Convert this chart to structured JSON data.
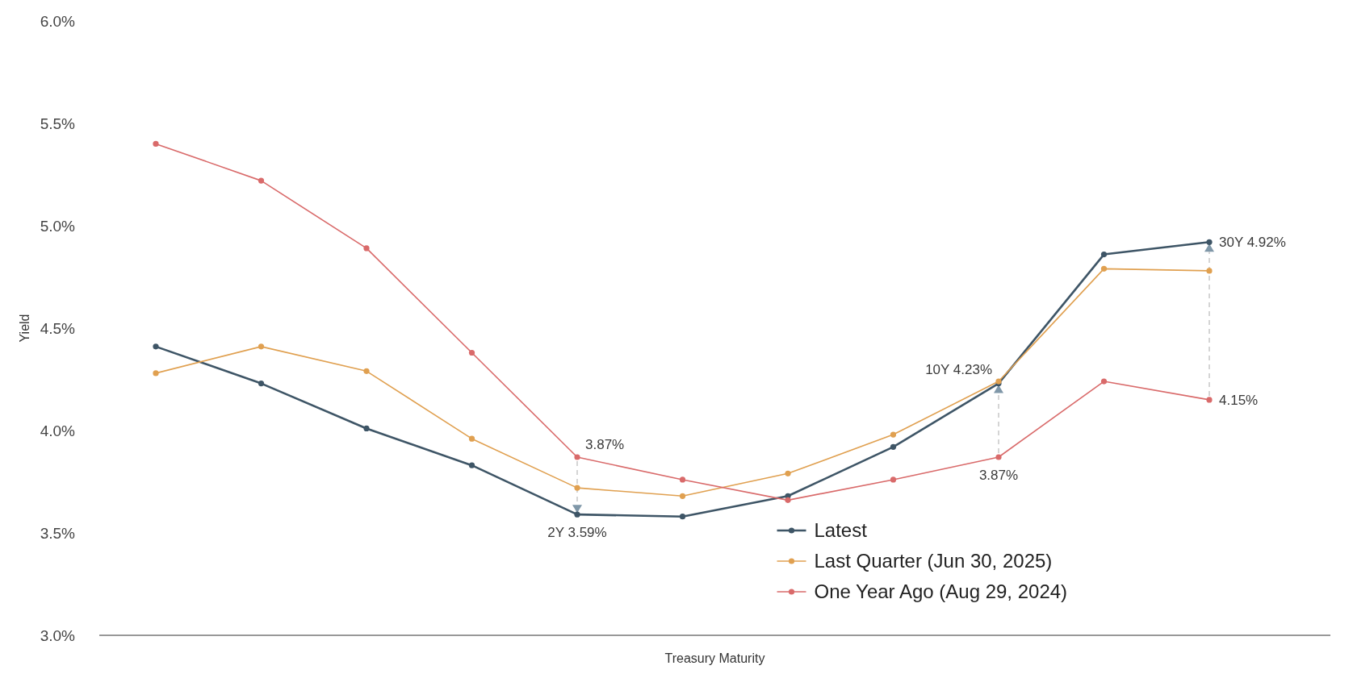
{
  "chart_data": {
    "type": "line",
    "xlabel": "Treasury Maturity",
    "ylabel": "Yield",
    "categories": [
      null,
      null,
      null,
      null,
      null,
      null,
      null,
      null,
      null,
      null,
      null
    ],
    "ylim": [
      3.0,
      6.0
    ],
    "yticks": [
      {
        "value": 3.0,
        "label": "3.0%"
      },
      {
        "value": 3.5,
        "label": "3.5%"
      },
      {
        "value": 4.0,
        "label": "4.0%"
      },
      {
        "value": 4.5,
        "label": "4.5%"
      },
      {
        "value": 5.0,
        "label": "5.0%"
      },
      {
        "value": 5.5,
        "label": "5.5%"
      },
      {
        "value": 6.0,
        "label": "6.0%"
      }
    ],
    "grid": false,
    "legend": "bottom right",
    "marker": "circle",
    "line_style": "solid",
    "series": [
      {
        "name": "Latest",
        "color": "#3e5566",
        "values": [
          4.41,
          4.23,
          4.01,
          3.83,
          3.59,
          3.58,
          3.68,
          3.92,
          4.23,
          4.86,
          4.92
        ],
        "value_labels": [
          null,
          null,
          null,
          null,
          "2Y 3.59%",
          null,
          null,
          null,
          "10Y 4.23%",
          null,
          "30Y 4.92%"
        ]
      },
      {
        "name": "Last Quarter (Jun 30, 2025)",
        "color": "#e0a050",
        "values": [
          4.28,
          4.41,
          4.29,
          3.96,
          3.72,
          3.68,
          3.79,
          3.98,
          4.24,
          4.79,
          4.78
        ]
      },
      {
        "name": "One Year Ago (Aug 29, 2024)",
        "color": "#d96a6a",
        "values": [
          5.4,
          5.22,
          4.89,
          4.38,
          3.87,
          3.76,
          3.66,
          3.76,
          3.87,
          4.24,
          4.15
        ],
        "value_labels": [
          null,
          null,
          null,
          null,
          "3.87%",
          null,
          null,
          null,
          "3.87%",
          null,
          "4.15%"
        ]
      }
    ]
  }
}
